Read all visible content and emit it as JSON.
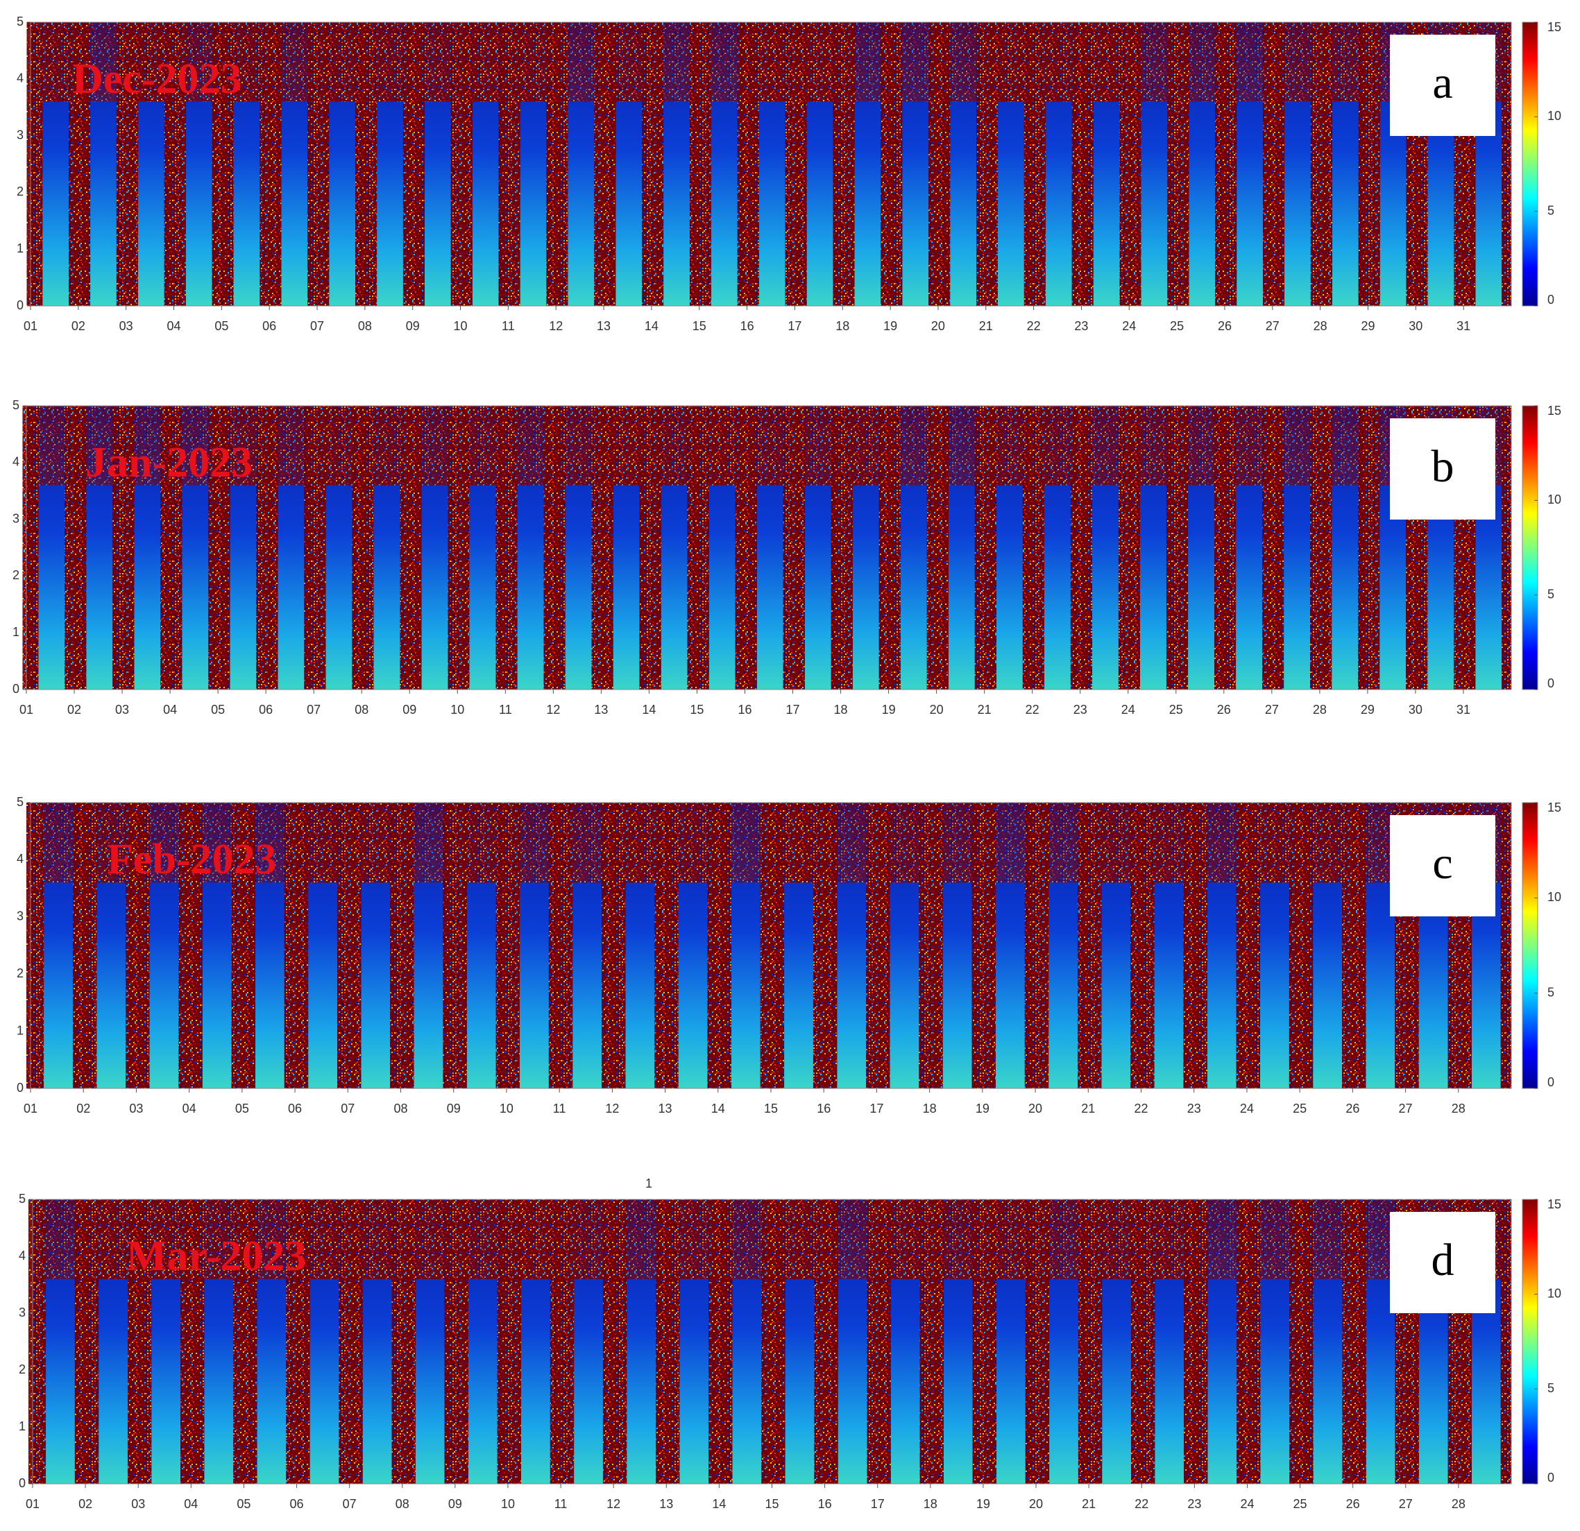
{
  "chart_data": [
    {
      "type": "heatmap",
      "title": "Dec-2023",
      "panel_label": "a",
      "categories": [
        "01",
        "02",
        "03",
        "04",
        "05",
        "06",
        "07",
        "08",
        "09",
        "10",
        "11",
        "12",
        "13",
        "14",
        "15",
        "16",
        "17",
        "18",
        "19",
        "20",
        "21",
        "22",
        "23",
        "24",
        "25",
        "26",
        "27",
        "28",
        "29",
        "30",
        "31"
      ],
      "ylim": [
        0,
        5
      ],
      "yticks": [
        0,
        1,
        2,
        3,
        4,
        5
      ],
      "clim": [
        0,
        15
      ],
      "cticks": [
        0,
        5,
        10,
        15
      ]
    },
    {
      "type": "heatmap",
      "title": "Jan-2023",
      "panel_label": "b",
      "categories": [
        "01",
        "02",
        "03",
        "04",
        "05",
        "06",
        "07",
        "08",
        "09",
        "10",
        "11",
        "12",
        "13",
        "14",
        "15",
        "16",
        "17",
        "18",
        "19",
        "20",
        "21",
        "22",
        "23",
        "24",
        "25",
        "26",
        "27",
        "28",
        "29",
        "30",
        "31"
      ],
      "ylim": [
        0,
        5
      ],
      "yticks": [
        0,
        1,
        2,
        3,
        4,
        5
      ],
      "clim": [
        0,
        15
      ],
      "cticks": [
        0,
        5,
        10,
        15
      ]
    },
    {
      "type": "heatmap",
      "title": "Feb-2023",
      "panel_label": "c",
      "categories": [
        "01",
        "02",
        "03",
        "04",
        "05",
        "06",
        "07",
        "08",
        "09",
        "10",
        "11",
        "12",
        "13",
        "14",
        "15",
        "16",
        "17",
        "18",
        "19",
        "20",
        "21",
        "22",
        "23",
        "24",
        "25",
        "26",
        "27",
        "28"
      ],
      "ylim": [
        0,
        5
      ],
      "yticks": [
        0,
        1,
        2,
        3,
        4,
        5
      ],
      "clim": [
        0,
        15
      ],
      "cticks": [
        0,
        5,
        10,
        15
      ]
    },
    {
      "type": "heatmap",
      "title": "Mar-2023",
      "panel_label": "d",
      "annotation": "1",
      "categories": [
        "01",
        "02",
        "03",
        "04",
        "05",
        "06",
        "07",
        "08",
        "09",
        "10",
        "11",
        "12",
        "13",
        "14",
        "15",
        "16",
        "17",
        "18",
        "19",
        "20",
        "21",
        "22",
        "23",
        "24",
        "25",
        "26",
        "27",
        "28"
      ],
      "ylim": [
        0,
        5
      ],
      "yticks": [
        0,
        1,
        2,
        3,
        4,
        5
      ],
      "clim": [
        0,
        15
      ],
      "cticks": [
        0,
        5,
        10,
        15
      ]
    }
  ]
}
